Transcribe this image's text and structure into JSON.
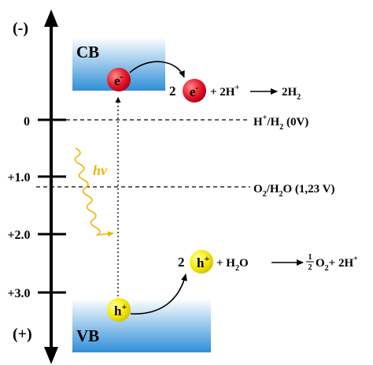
{
  "axis": {
    "top_label": "(-)",
    "bottom_label": "(+)",
    "ticks": [
      "0",
      "+1.0",
      "+2.0",
      "+3.0"
    ]
  },
  "bands": {
    "cb_label": "CB",
    "vb_label": "VB"
  },
  "carriers": {
    "electron_symbol": "e",
    "electron_charge": "-",
    "hole_symbol": "h",
    "hole_charge": "+"
  },
  "light": {
    "label": "hν"
  },
  "levels": {
    "h_label_main": "H",
    "h_label_sup": "+",
    "h_label_rest": "/H",
    "h_label_sub": "2",
    "h_label_value": " (0V)",
    "o_label_main": "O",
    "o_label_sub": "2",
    "o_label_rest": "/H",
    "o_label_sub2": "2",
    "o_label_value": "O (1,23 V)"
  },
  "reactions": {
    "reduction_coef": "2",
    "reduction_plus": "+ 2H",
    "reduction_plus_sup": "+",
    "reduction_product": "2H",
    "reduction_product_sub": "2",
    "oxidation_coef": "2",
    "oxidation_plus": "+  H",
    "oxidation_plus_sub": "2",
    "oxidation_plus_rest": "O",
    "oxidation_frac_num": "1",
    "oxidation_frac_den": "2",
    "oxidation_o": "O",
    "oxidation_o_sub": "2",
    "oxidation_tail": "+ 2H",
    "oxidation_tail_sup": "+"
  },
  "colors": {
    "band_top": "#ffffff",
    "band_bottom": "#2f8fd8",
    "electron": "#e8192c",
    "hole": "#f7ea00",
    "light": "#f2b400"
  }
}
